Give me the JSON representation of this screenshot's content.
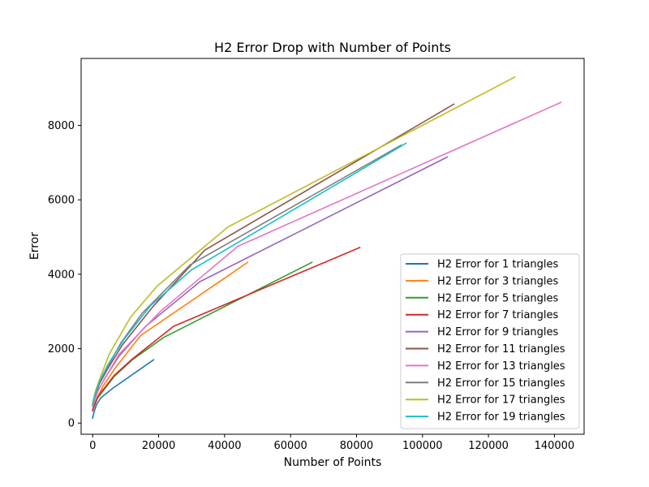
{
  "chart_data": {
    "type": "line",
    "title": "H2 Error Drop with Number of Points",
    "xlabel": "Number of Points",
    "ylabel": "Error",
    "xlim": [
      -3500,
      149000
    ],
    "ylim": [
      -300,
      9800
    ],
    "xticks": [
      0,
      20000,
      40000,
      60000,
      80000,
      100000,
      120000,
      140000
    ],
    "xtick_labels": [
      "0",
      "20000",
      "40000",
      "60000",
      "80000",
      "100000",
      "120000",
      "140000"
    ],
    "yticks": [
      0,
      2000,
      4000,
      6000,
      8000
    ],
    "ytick_labels": [
      "0",
      "2000",
      "4000",
      "6000",
      "8000"
    ],
    "grid": false,
    "legend_position": "bottom-right",
    "series": [
      {
        "name": "H2 Error for 1 triangles",
        "color": "#1f77b4",
        "x": [
          0,
          400,
          1200,
          2500,
          6000,
          18500
        ],
        "y": [
          130,
          300,
          500,
          680,
          930,
          1700
        ]
      },
      {
        "name": "H2 Error for 3 triangles",
        "color": "#ff7f0e",
        "x": [
          0,
          600,
          1500,
          3200,
          7000,
          14500,
          47000
        ],
        "y": [
          350,
          500,
          700,
          1000,
          1500,
          2350,
          4320
        ]
      },
      {
        "name": "H2 Error for 5 triangles",
        "color": "#2ca02c",
        "x": [
          0,
          600,
          1500,
          3200,
          6500,
          12000,
          21500,
          66500
        ],
        "y": [
          330,
          480,
          670,
          870,
          1250,
          1700,
          2300,
          4320
        ]
      },
      {
        "name": "H2 Error for 7 triangles",
        "color": "#d62728",
        "x": [
          0,
          600,
          1500,
          3200,
          6500,
          12000,
          24500,
          81000
        ],
        "y": [
          340,
          500,
          700,
          900,
          1280,
          1720,
          2600,
          4720
        ]
      },
      {
        "name": "H2 Error for 9 triangles",
        "color": "#9467bd",
        "x": [
          0,
          700,
          1800,
          4000,
          8000,
          16000,
          32500,
          107500
        ],
        "y": [
          430,
          650,
          900,
          1250,
          1800,
          2600,
          3800,
          7150
        ]
      },
      {
        "name": "H2 Error for 11 triangles",
        "color": "#8c564b",
        "x": [
          0,
          700,
          2000,
          4500,
          9000,
          18000,
          34000,
          109500
        ],
        "y": [
          480,
          720,
          1050,
          1450,
          2100,
          3100,
          4650,
          8570
        ]
      },
      {
        "name": "H2 Error for 13 triangles",
        "color": "#e377c2",
        "x": [
          0,
          700,
          1800,
          4000,
          8000,
          20500,
          44000,
          142000
        ],
        "y": [
          430,
          650,
          900,
          1250,
          1850,
          3000,
          4750,
          8620
        ]
      },
      {
        "name": "H2 Error for 15 triangles",
        "color": "#7f7f7f",
        "x": [
          0,
          700,
          2000,
          4500,
          8500,
          15000,
          29500,
          93500
        ],
        "y": [
          500,
          750,
          1100,
          1500,
          2150,
          2950,
          4250,
          7470
        ]
      },
      {
        "name": "H2 Error for 17 triangles",
        "color": "#bcbd22",
        "x": [
          0,
          800,
          2200,
          5000,
          11500,
          19500,
          41000,
          128000
        ],
        "y": [
          550,
          850,
          1200,
          1850,
          2850,
          3680,
          5270,
          9300
        ]
      },
      {
        "name": "H2 Error for 19 triangles",
        "color": "#17becf",
        "x": [
          0,
          700,
          2000,
          4500,
          9500,
          17500,
          30000,
          95000
        ],
        "y": [
          500,
          760,
          1100,
          1550,
          2250,
          3150,
          4120,
          7520
        ]
      }
    ]
  }
}
